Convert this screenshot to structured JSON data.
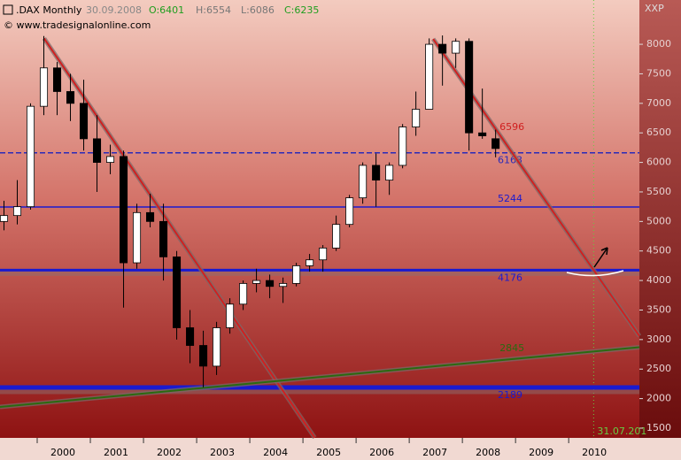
{
  "chart_data": {
    "type": "candlestick",
    "header": {
      "symbol": ".DAX Monthly",
      "date": "30.09.2008",
      "open": "O:6401",
      "high": "H:6554",
      "low": "L:6086",
      "close": "C:6235",
      "source": "© www.tradesignalonline.com",
      "axis_label": "XXP"
    },
    "x": [
      1999.375,
      1999.625,
      1999.875,
      2000.125,
      2000.375,
      2000.625,
      2000.875,
      2001.125,
      2001.375,
      2001.625,
      2001.875,
      2002.125,
      2002.375,
      2002.625,
      2002.875,
      2003.125,
      2003.375,
      2003.625,
      2003.875,
      2004.125,
      2004.375,
      2004.625,
      2004.875,
      2005.125,
      2005.375,
      2005.625,
      2005.875,
      2006.125,
      2006.375,
      2006.625,
      2006.875,
      2007.125,
      2007.375,
      2007.625,
      2007.875,
      2008.125,
      2008.375,
      2008.625
    ],
    "open": [
      5000,
      5100,
      5250,
      6950,
      7600,
      7200,
      7000,
      6400,
      6000,
      6100,
      4300,
      5150,
      5000,
      4400,
      3200,
      2900,
      2550,
      3200,
      3600,
      3950,
      4000,
      3900,
      3950,
      4250,
      4350,
      4550,
      4950,
      5400,
      5950,
      5700,
      5950,
      6600,
      6900,
      8000,
      7850,
      8050,
      6500,
      6401
    ],
    "high": [
      5350,
      5700,
      7000,
      8140,
      7700,
      7500,
      7400,
      6800,
      6300,
      6200,
      5300,
      5470,
      5300,
      4500,
      3500,
      3150,
      3300,
      3700,
      4000,
      4200,
      4100,
      4050,
      4300,
      4450,
      4600,
      5100,
      5450,
      6000,
      6150,
      6000,
      6650,
      7200,
      8100,
      8150,
      8100,
      8100,
      7250,
      6554
    ],
    "low": [
      4850,
      4950,
      5200,
      6800,
      6800,
      6700,
      6200,
      5500,
      5800,
      3540,
      4200,
      4900,
      4000,
      3000,
      2600,
      2190,
      2400,
      3100,
      3500,
      3800,
      3700,
      3620,
      3900,
      4150,
      4150,
      4500,
      4900,
      5300,
      5250,
      5450,
      5900,
      6450,
      6900,
      7300,
      7600,
      6200,
      6400,
      6086
    ],
    "close": [
      5100,
      5250,
      6950,
      7600,
      7200,
      7000,
      6400,
      6000,
      6100,
      4300,
      5150,
      5000,
      4400,
      3200,
      2900,
      2550,
      3200,
      3600,
      3950,
      4000,
      3900,
      3950,
      4250,
      4350,
      4550,
      4950,
      5400,
      5950,
      5700,
      5950,
      6600,
      6900,
      8000,
      7850,
      8050,
      6500,
      6450,
      6235
    ],
    "up_color": "#ffffff",
    "down_color": "#000000",
    "xlim": [
      1999.3,
      2011.33
    ],
    "xticks": [
      2000,
      2001,
      2002,
      2003,
      2004,
      2005,
      2006,
      2007,
      2008,
      2009,
      2010
    ],
    "ylim": [
      1335,
      8750
    ],
    "yticks": [
      1500,
      2000,
      2500,
      3000,
      3500,
      4000,
      4500,
      5000,
      5500,
      6000,
      6500,
      7000,
      7500,
      8000
    ],
    "levels": [
      {
        "value": 6163,
        "color": "#2a2ab8",
        "style": "dashed",
        "width": 1.5
      },
      {
        "value": 5244,
        "color": "#1a1ad0",
        "style": "solid",
        "width": 1.5
      },
      {
        "value": 4176,
        "color": "#1a1ad0",
        "style": "solid",
        "width": 3
      },
      {
        "value": 2189,
        "color": "#1a1ad0",
        "style": "solid",
        "width": 5
      }
    ],
    "trendlines": [
      {
        "points": [
          [
            2000.13,
            8100
          ],
          [
            2005.22,
            1340
          ]
        ],
        "color": "#d02020"
      },
      {
        "points": [
          [
            2007.45,
            8090
          ],
          [
            2011.33,
            3060
          ]
        ],
        "color": "#d02020",
        "label": 6596,
        "label_x": 2008.7
      },
      {
        "points": [
          [
            1999.3,
            1860
          ],
          [
            2011.33,
            2870
          ]
        ],
        "color": "#2a6a10",
        "label": 2845,
        "label_x": 2008.7
      }
    ],
    "marker": {
      "x": 2010.47,
      "label": "31.07.201",
      "color": "#66cc44"
    }
  }
}
